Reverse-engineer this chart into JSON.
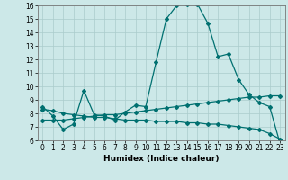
{
  "title": "",
  "xlabel": "Humidex (Indice chaleur)",
  "bg_color": "#cce8e8",
  "line_color": "#007070",
  "grid_color": "#aacccc",
  "xlim": [
    -0.5,
    23.5
  ],
  "ylim": [
    6,
    16
  ],
  "xticks": [
    0,
    1,
    2,
    3,
    4,
    5,
    6,
    7,
    8,
    9,
    10,
    11,
    12,
    13,
    14,
    15,
    16,
    17,
    18,
    19,
    20,
    21,
    22,
    23
  ],
  "yticks": [
    6,
    7,
    8,
    9,
    10,
    11,
    12,
    13,
    14,
    15,
    16
  ],
  "line1_x": [
    0,
    1,
    2,
    3,
    4,
    5,
    6,
    7,
    8,
    9,
    10,
    11,
    12,
    13,
    14,
    15,
    16,
    17,
    18,
    19,
    20,
    21,
    22,
    23
  ],
  "line1_y": [
    8.5,
    7.8,
    6.8,
    7.2,
    9.7,
    7.9,
    7.8,
    7.5,
    8.1,
    8.6,
    8.5,
    11.8,
    15.0,
    16.0,
    16.1,
    16.1,
    14.7,
    12.2,
    12.4,
    10.5,
    9.4,
    8.8,
    8.5,
    5.8
  ],
  "line2_x": [
    0,
    1,
    2,
    3,
    4,
    5,
    6,
    7,
    8,
    9,
    10,
    11,
    12,
    13,
    14,
    15,
    16,
    17,
    18,
    19,
    20,
    21,
    22,
    23
  ],
  "line2_y": [
    7.5,
    7.5,
    7.5,
    7.6,
    7.7,
    7.8,
    7.9,
    7.9,
    8.0,
    8.1,
    8.2,
    8.3,
    8.4,
    8.5,
    8.6,
    8.7,
    8.8,
    8.9,
    9.0,
    9.1,
    9.2,
    9.2,
    9.3,
    9.3
  ],
  "line3_x": [
    0,
    1,
    2,
    3,
    4,
    5,
    6,
    7,
    8,
    9,
    10,
    11,
    12,
    13,
    14,
    15,
    16,
    17,
    18,
    19,
    20,
    21,
    22,
    23
  ],
  "line3_y": [
    8.3,
    8.2,
    8.0,
    7.9,
    7.8,
    7.7,
    7.7,
    7.6,
    7.5,
    7.5,
    7.5,
    7.4,
    7.4,
    7.4,
    7.3,
    7.3,
    7.2,
    7.2,
    7.1,
    7.0,
    6.9,
    6.8,
    6.5,
    6.1
  ],
  "tick_fontsize": 5.5,
  "xlabel_fontsize": 6.5,
  "marker_size": 2.0,
  "line_width": 0.9
}
